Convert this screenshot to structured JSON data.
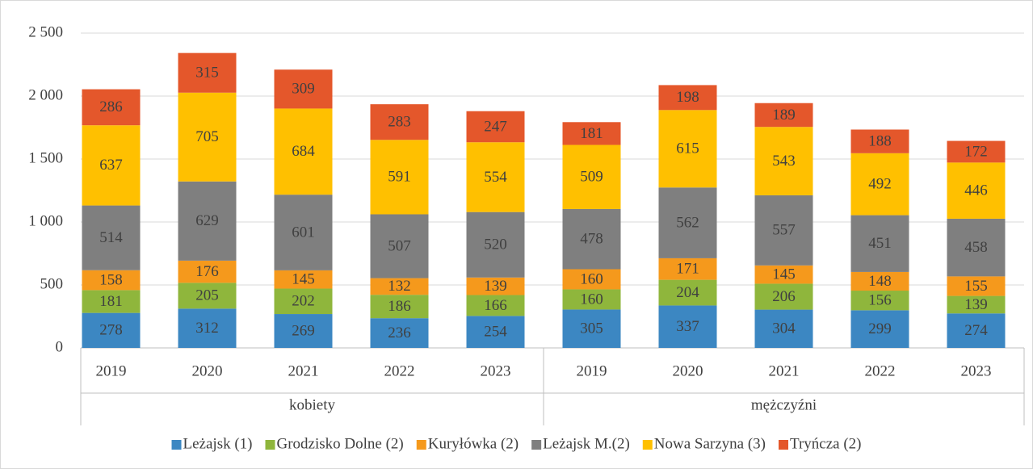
{
  "chart_data": {
    "type": "stacked_bar",
    "categories": [
      "2019",
      "2020",
      "2021",
      "2022",
      "2023",
      "2019",
      "2020",
      "2021",
      "2022",
      "2023"
    ],
    "groups": [
      "kobiety",
      "mężczyźni"
    ],
    "series": [
      {
        "name": "Leżajsk (1)",
        "color": "#3c87c2",
        "values": [
          278,
          312,
          269,
          236,
          254,
          305,
          337,
          304,
          299,
          274
        ]
      },
      {
        "name": "Grodzisko Dolne (2)",
        "color": "#8fb63c",
        "values": [
          181,
          205,
          202,
          186,
          166,
          160,
          204,
          206,
          156,
          139
        ]
      },
      {
        "name": "Kuryłówka (2)",
        "color": "#f5991c",
        "values": [
          158,
          176,
          145,
          132,
          139,
          160,
          171,
          145,
          148,
          155
        ]
      },
      {
        "name": "Leżajsk M.(2)",
        "color": "#7f7f7f",
        "values": [
          514,
          629,
          601,
          507,
          520,
          478,
          562,
          557,
          451,
          458
        ]
      },
      {
        "name": "Nowa Sarzyna (3)",
        "color": "#ffc000",
        "values": [
          637,
          705,
          684,
          591,
          554,
          509,
          615,
          543,
          492,
          446
        ]
      },
      {
        "name": "Tryńcza (2)",
        "color": "#e4572b",
        "values": [
          286,
          315,
          309,
          283,
          247,
          181,
          198,
          189,
          188,
          172
        ]
      }
    ],
    "ylim": [
      0,
      2500
    ],
    "yticks": [
      0,
      500,
      {
        "value": 1000,
        "label": "1 000"
      },
      {
        "value": 1500,
        "label": "1 500"
      },
      {
        "value": 2000,
        "label": "2 000"
      },
      {
        "value": 2500,
        "label": "2 500"
      }
    ],
    "grid": true,
    "legend": "bottom"
  }
}
